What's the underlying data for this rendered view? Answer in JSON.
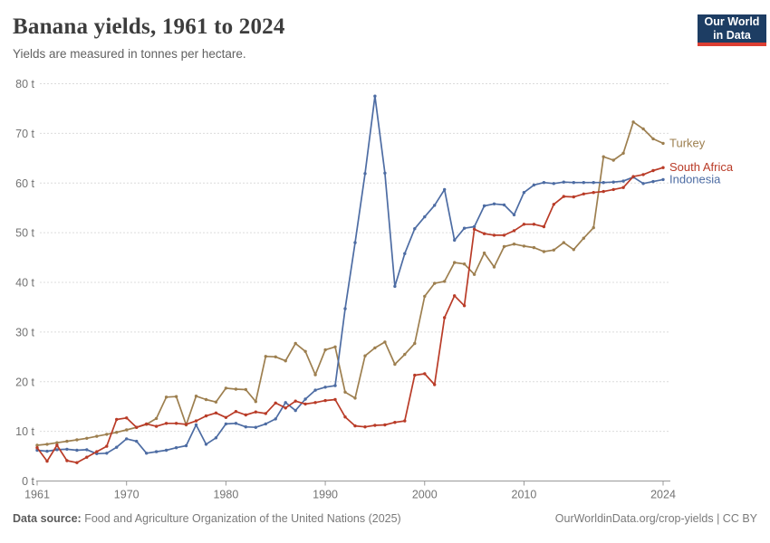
{
  "header": {
    "title": "Banana yields, 1961 to 2024",
    "subtitle": "Yields are measured in tonnes per hectare.",
    "logo": {
      "line1": "Our World",
      "line2": "in Data",
      "bg_color": "#1d3d63",
      "accent_color": "#dc3e32"
    }
  },
  "footer": {
    "source_label": "Data source:",
    "source_text": " Food and Agriculture Organization of the United Nations (2025)",
    "right_text": "OurWorldinData.org/crop-yields | CC BY"
  },
  "chart_data": {
    "type": "line",
    "title": "Banana yields, 1961 to 2024",
    "unit": "t",
    "x_label": "",
    "y_label": "",
    "ylim": [
      0,
      80
    ],
    "y_ticks": [
      0,
      10,
      20,
      30,
      40,
      50,
      60,
      70,
      80
    ],
    "y_tick_suffix": " t",
    "x_ticks": [
      1961,
      1970,
      1980,
      1990,
      2000,
      2010,
      2024
    ],
    "grid": "horizontal-dashed",
    "legend_position": "line-end-labels",
    "x": [
      1961,
      1962,
      1963,
      1964,
      1965,
      1966,
      1967,
      1968,
      1969,
      1970,
      1971,
      1972,
      1973,
      1974,
      1975,
      1976,
      1977,
      1978,
      1979,
      1980,
      1981,
      1982,
      1983,
      1984,
      1985,
      1986,
      1987,
      1988,
      1989,
      1990,
      1991,
      1992,
      1993,
      1994,
      1995,
      1996,
      1997,
      1998,
      1999,
      2000,
      2001,
      2002,
      2003,
      2004,
      2005,
      2006,
      2007,
      2008,
      2009,
      2010,
      2011,
      2012,
      2013,
      2014,
      2015,
      2016,
      2017,
      2018,
      2019,
      2020,
      2021,
      2022,
      2023,
      2024
    ],
    "series": [
      {
        "name": "Turkey",
        "color": "#9d7f4f",
        "values": [
          7.2,
          7.4,
          7.7,
          8,
          8.3,
          8.6,
          9,
          9.4,
          9.8,
          10.3,
          10.8,
          11.4,
          12.6,
          16.9,
          17,
          11.3,
          17.1,
          16.4,
          15.9,
          18.7,
          18.5,
          18.4,
          16,
          25.1,
          25,
          24.2,
          27.7,
          26.1,
          21.4,
          26.4,
          27,
          17.9,
          16.7,
          25.2,
          26.8,
          28,
          23.5,
          25.5,
          27.7,
          37.2,
          39.8,
          40.2,
          44,
          43.7,
          41.6,
          45.9,
          43.1,
          47.2,
          47.7,
          47.3,
          47,
          46.2,
          46.5,
          48,
          46.6,
          48.9,
          51,
          65.3,
          64.6,
          66,
          72.3,
          70.9,
          68.9,
          68
        ]
      },
      {
        "name": "South Africa",
        "color": "#b93b27",
        "values": [
          6.7,
          4,
          7.2,
          4.1,
          3.7,
          4.8,
          5.9,
          7,
          12.4,
          12.7,
          10.8,
          11.5,
          11,
          11.6,
          11.6,
          11.4,
          12.1,
          13.1,
          13.7,
          12.8,
          14,
          13.3,
          13.9,
          13.6,
          15.7,
          14.7,
          16.1,
          15.5,
          15.8,
          16.2,
          16.4,
          12.9,
          11.1,
          10.9,
          11.2,
          11.3,
          11.8,
          12.1,
          21.3,
          21.6,
          19.4,
          32.9,
          37.3,
          35.3,
          50.7,
          49.8,
          49.5,
          49.5,
          50.4,
          51.7,
          51.7,
          51.2,
          55.7,
          57.3,
          57.2,
          57.8,
          58.1,
          58.3,
          58.7,
          59.1,
          61.3,
          61.7,
          62.5,
          63.1
        ]
      },
      {
        "name": "Indonesia",
        "color": "#4d6ca3",
        "values": [
          6.2,
          6,
          6.3,
          6.4,
          6.2,
          6.3,
          5.5,
          5.6,
          6.8,
          8.5,
          8,
          5.6,
          5.9,
          6.2,
          6.7,
          7.1,
          11.3,
          7.4,
          8.7,
          11.5,
          11.6,
          10.9,
          10.8,
          11.5,
          12.5,
          15.8,
          14.2,
          16.5,
          18.3,
          18.9,
          19.2,
          34.7,
          48,
          61.9,
          77.5,
          62,
          39.2,
          45.8,
          50.8,
          53.2,
          55.5,
          58.7,
          48.5,
          50.9,
          51.2,
          55.4,
          55.8,
          55.6,
          53.6,
          58.1,
          59.6,
          60.1,
          59.9,
          60.2,
          60.1,
          60.1,
          60.1,
          60.1,
          60.2,
          60.4,
          61.2,
          59.9,
          60.3,
          60.7
        ]
      }
    ],
    "styles": {
      "grid_color": "#dcdcdc",
      "axis_color": "#999999",
      "tick_label_color": "#737373"
    }
  }
}
